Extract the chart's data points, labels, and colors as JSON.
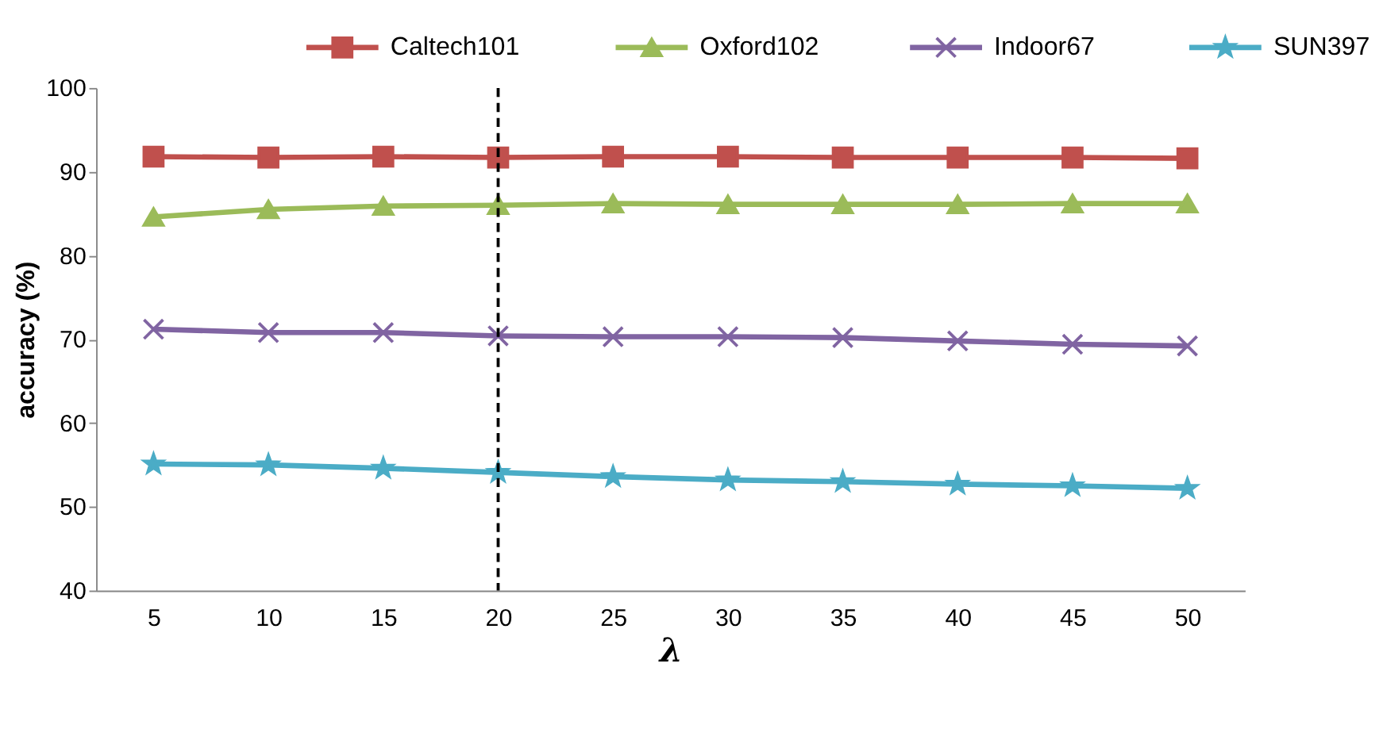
{
  "chart_data": {
    "type": "line",
    "xlabel": "λ",
    "ylabel": "accuracy (%)",
    "categories": [
      "5",
      "10",
      "15",
      "20",
      "25",
      "30",
      "35",
      "40",
      "45",
      "50"
    ],
    "series": [
      {
        "name": "Caltech101",
        "color": "#c0504d",
        "marker": "square",
        "values": [
          91.8,
          91.7,
          91.8,
          91.7,
          91.8,
          91.8,
          91.7,
          91.7,
          91.7,
          91.6
        ]
      },
      {
        "name": "Oxford102",
        "color": "#9bbb59",
        "marker": "triangle",
        "values": [
          84.6,
          85.5,
          85.9,
          86.0,
          86.2,
          86.1,
          86.1,
          86.1,
          86.2,
          86.2
        ]
      },
      {
        "name": "Indoor67",
        "color": "#8064a2",
        "marker": "cross",
        "values": [
          71.2,
          70.8,
          70.8,
          70.4,
          70.3,
          70.3,
          70.2,
          69.8,
          69.4,
          69.2
        ]
      },
      {
        "name": "SUN397",
        "color": "#4bacc6",
        "marker": "star",
        "values": [
          55.1,
          55.0,
          54.6,
          54.1,
          53.6,
          53.2,
          53.0,
          52.7,
          52.5,
          52.2
        ]
      }
    ],
    "ylim": [
      40,
      100
    ],
    "yticks": [
      40,
      50,
      60,
      70,
      80,
      90,
      100
    ],
    "ref_lines": [
      {
        "axis": "x",
        "value": "20",
        "color": "#000000",
        "line_style": "dashed"
      }
    ],
    "legend": "top",
    "grid": false,
    "line_style": "solid"
  }
}
